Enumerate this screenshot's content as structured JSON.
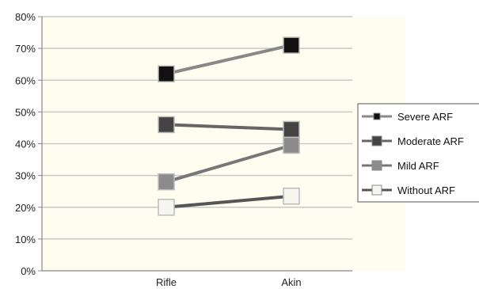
{
  "chart_data": {
    "type": "line",
    "categories": [
      "Rifle",
      "Akin"
    ],
    "y_tick_labels": [
      "0%",
      "10%",
      "20%",
      "30%",
      "40%",
      "50%",
      "60%",
      "70%",
      "80%"
    ],
    "ylim": [
      0,
      80
    ],
    "grid": true,
    "legend_position": "right",
    "plot_background": "#fffdf0",
    "series": [
      {
        "name": "Severe ARF",
        "values": [
          62,
          71
        ],
        "marker_color": "#111111",
        "line_color": "#888888"
      },
      {
        "name": "Moderate ARF",
        "values": [
          46,
          44.5
        ],
        "marker_color": "#444444",
        "line_color": "#666666"
      },
      {
        "name": "Mild ARF",
        "values": [
          28,
          39.5
        ],
        "marker_color": "#8c8c8c",
        "line_color": "#777777"
      },
      {
        "name": "Without ARF",
        "values": [
          20,
          23.5
        ],
        "marker_color": "#f6f6f0",
        "line_color": "#555555"
      }
    ]
  }
}
